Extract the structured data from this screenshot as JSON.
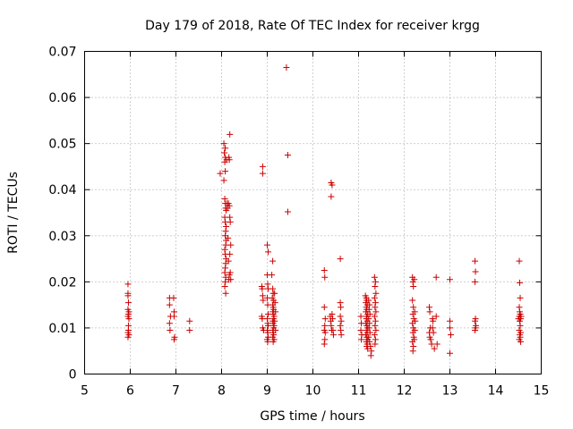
{
  "chart_data": {
    "type": "scatter",
    "title": "Day 179 of 2018, Rate Of TEC Index for receiver krgg",
    "xlabel": "GPS time / hours",
    "ylabel": "ROTI / TECUs",
    "xlim": [
      5,
      15
    ],
    "ylim": [
      0,
      0.07
    ],
    "xticks": [
      "5",
      "6",
      "7",
      "8",
      "9",
      "10",
      "11",
      "12",
      "13",
      "14",
      "15"
    ],
    "yticks": [
      "0",
      "0.01",
      "0.02",
      "0.03",
      "0.04",
      "0.05",
      "0.06",
      "0.07"
    ],
    "grid": true,
    "marker": "+",
    "color": "#cc0000",
    "series": [
      {
        "name": "ROTI",
        "points": [
          [
            5.95,
            0.0195
          ],
          [
            5.95,
            0.017
          ],
          [
            5.96,
            0.0155
          ],
          [
            5.95,
            0.014
          ],
          [
            5.97,
            0.0135
          ],
          [
            5.96,
            0.013
          ],
          [
            5.95,
            0.0125
          ],
          [
            5.97,
            0.012
          ],
          [
            5.96,
            0.0095
          ],
          [
            5.95,
            0.009
          ],
          [
            5.95,
            0.008
          ],
          [
            5.97,
            0.0085
          ],
          [
            5.96,
            0.0105
          ],
          [
            5.95,
            0.0175
          ],
          [
            6.86,
            0.0165
          ],
          [
            6.86,
            0.015
          ],
          [
            6.88,
            0.0125
          ],
          [
            6.86,
            0.011
          ],
          [
            6.87,
            0.0095
          ],
          [
            6.95,
            0.0165
          ],
          [
            6.96,
            0.0135
          ],
          [
            6.96,
            0.0125
          ],
          [
            6.97,
            0.008
          ],
          [
            6.96,
            0.0075
          ],
          [
            7.3,
            0.0115
          ],
          [
            7.3,
            0.0095
          ],
          [
            7.97,
            0.0435
          ],
          [
            8.05,
            0.05
          ],
          [
            8.08,
            0.049
          ],
          [
            8.06,
            0.048
          ],
          [
            8.08,
            0.047
          ],
          [
            8.07,
            0.046
          ],
          [
            8.08,
            0.044
          ],
          [
            8.05,
            0.042
          ],
          [
            8.07,
            0.038
          ],
          [
            8.08,
            0.037
          ],
          [
            8.09,
            0.036
          ],
          [
            8.1,
            0.0355
          ],
          [
            8.07,
            0.034
          ],
          [
            8.08,
            0.033
          ],
          [
            8.1,
            0.032
          ],
          [
            8.09,
            0.031
          ],
          [
            8.08,
            0.03
          ],
          [
            8.1,
            0.029
          ],
          [
            8.09,
            0.028
          ],
          [
            8.07,
            0.027
          ],
          [
            8.08,
            0.026
          ],
          [
            8.1,
            0.025
          ],
          [
            8.09,
            0.024
          ],
          [
            8.08,
            0.023
          ],
          [
            8.07,
            0.022
          ],
          [
            8.09,
            0.021
          ],
          [
            8.08,
            0.02
          ],
          [
            8.07,
            0.019
          ],
          [
            8.09,
            0.0175
          ],
          [
            8.11,
            0.0465
          ],
          [
            8.12,
            0.037
          ],
          [
            8.13,
            0.036
          ],
          [
            8.14,
            0.0295
          ],
          [
            8.15,
            0.0245
          ],
          [
            8.16,
            0.0205
          ],
          [
            8.18,
            0.052
          ],
          [
            8.16,
            0.047
          ],
          [
            8.17,
            0.0465
          ],
          [
            8.15,
            0.037
          ],
          [
            8.17,
            0.0365
          ],
          [
            8.18,
            0.034
          ],
          [
            8.19,
            0.033
          ],
          [
            8.2,
            0.028
          ],
          [
            8.18,
            0.026
          ],
          [
            8.19,
            0.022
          ],
          [
            8.17,
            0.0215
          ],
          [
            8.2,
            0.0205
          ],
          [
            8.9,
            0.045
          ],
          [
            8.9,
            0.0435
          ],
          [
            8.88,
            0.019
          ],
          [
            8.89,
            0.0185
          ],
          [
            8.9,
            0.017
          ],
          [
            8.91,
            0.016
          ],
          [
            8.88,
            0.0125
          ],
          [
            8.89,
            0.012
          ],
          [
            8.9,
            0.01
          ],
          [
            8.92,
            0.0095
          ],
          [
            9.0,
            0.028
          ],
          [
            9.02,
            0.0265
          ],
          [
            9.0,
            0.0215
          ],
          [
            9.01,
            0.0195
          ],
          [
            9.02,
            0.0185
          ],
          [
            9.0,
            0.0165
          ],
          [
            9.01,
            0.015
          ],
          [
            9.02,
            0.013
          ],
          [
            9.0,
            0.012
          ],
          [
            9.01,
            0.011
          ],
          [
            9.02,
            0.0105
          ],
          [
            9.0,
            0.0095
          ],
          [
            9.01,
            0.009
          ],
          [
            9.02,
            0.008
          ],
          [
            9.0,
            0.0075
          ],
          [
            9.01,
            0.007
          ],
          [
            9.12,
            0.0245
          ],
          [
            9.1,
            0.0215
          ],
          [
            9.12,
            0.0185
          ],
          [
            9.13,
            0.0175
          ],
          [
            9.11,
            0.0165
          ],
          [
            9.14,
            0.016
          ],
          [
            9.12,
            0.015
          ],
          [
            9.13,
            0.0145
          ],
          [
            9.14,
            0.014
          ],
          [
            9.12,
            0.0135
          ],
          [
            9.13,
            0.013
          ],
          [
            9.15,
            0.0125
          ],
          [
            9.14,
            0.012
          ],
          [
            9.12,
            0.0115
          ],
          [
            9.13,
            0.011
          ],
          [
            9.15,
            0.0105
          ],
          [
            9.14,
            0.01
          ],
          [
            9.12,
            0.0095
          ],
          [
            9.13,
            0.009
          ],
          [
            9.14,
            0.0085
          ],
          [
            9.12,
            0.008
          ],
          [
            9.15,
            0.0075
          ],
          [
            9.13,
            0.007
          ],
          [
            9.16,
            0.0175
          ],
          [
            9.17,
            0.0155
          ],
          [
            9.18,
            0.0135
          ],
          [
            9.16,
            0.0115
          ],
          [
            9.18,
            0.0095
          ],
          [
            9.42,
            0.0665
          ],
          [
            9.45,
            0.0475
          ],
          [
            9.45,
            0.0352
          ],
          [
            10.25,
            0.0225
          ],
          [
            10.26,
            0.021
          ],
          [
            10.25,
            0.0145
          ],
          [
            10.27,
            0.012
          ],
          [
            10.26,
            0.0105
          ],
          [
            10.25,
            0.0095
          ],
          [
            10.27,
            0.009
          ],
          [
            10.26,
            0.0075
          ],
          [
            10.25,
            0.0065
          ],
          [
            10.4,
            0.0415
          ],
          [
            10.42,
            0.041
          ],
          [
            10.4,
            0.0385
          ],
          [
            10.38,
            0.0125
          ],
          [
            10.39,
            0.0115
          ],
          [
            10.4,
            0.0105
          ],
          [
            10.41,
            0.0095
          ],
          [
            10.42,
            0.013
          ],
          [
            10.43,
            0.012
          ],
          [
            10.44,
            0.0095
          ],
          [
            10.45,
            0.0085
          ],
          [
            10.6,
            0.025
          ],
          [
            10.6,
            0.0155
          ],
          [
            10.61,
            0.0145
          ],
          [
            10.6,
            0.0125
          ],
          [
            10.62,
            0.0115
          ],
          [
            10.6,
            0.0105
          ],
          [
            10.61,
            0.0095
          ],
          [
            10.62,
            0.0085
          ],
          [
            11.05,
            0.0125
          ],
          [
            11.06,
            0.011
          ],
          [
            11.05,
            0.0095
          ],
          [
            11.07,
            0.0085
          ],
          [
            11.06,
            0.0075
          ],
          [
            11.15,
            0.017
          ],
          [
            11.17,
            0.0165
          ],
          [
            11.18,
            0.016
          ],
          [
            11.16,
            0.0155
          ],
          [
            11.19,
            0.015
          ],
          [
            11.17,
            0.0145
          ],
          [
            11.18,
            0.014
          ],
          [
            11.16,
            0.0135
          ],
          [
            11.2,
            0.013
          ],
          [
            11.18,
            0.0125
          ],
          [
            11.17,
            0.012
          ],
          [
            11.19,
            0.0115
          ],
          [
            11.16,
            0.011
          ],
          [
            11.18,
            0.0105
          ],
          [
            11.2,
            0.01
          ],
          [
            11.17,
            0.0095
          ],
          [
            11.19,
            0.009
          ],
          [
            11.16,
            0.0085
          ],
          [
            11.18,
            0.008
          ],
          [
            11.2,
            0.0075
          ],
          [
            11.17,
            0.007
          ],
          [
            11.19,
            0.0065
          ],
          [
            11.18,
            0.006
          ],
          [
            11.2,
            0.0055
          ],
          [
            11.22,
            0.016
          ],
          [
            11.24,
            0.015
          ],
          [
            11.23,
            0.014
          ],
          [
            11.25,
            0.013
          ],
          [
            11.22,
            0.012
          ],
          [
            11.24,
            0.011
          ],
          [
            11.23,
            0.01
          ],
          [
            11.25,
            0.009
          ],
          [
            11.22,
            0.008
          ],
          [
            11.24,
            0.007
          ],
          [
            11.26,
            0.006
          ],
          [
            11.28,
            0.005
          ],
          [
            11.27,
            0.004
          ],
          [
            11.35,
            0.021
          ],
          [
            11.37,
            0.02
          ],
          [
            11.36,
            0.019
          ],
          [
            11.38,
            0.0175
          ],
          [
            11.35,
            0.0165
          ],
          [
            11.37,
            0.0155
          ],
          [
            11.36,
            0.0145
          ],
          [
            11.38,
            0.0135
          ],
          [
            11.35,
            0.0125
          ],
          [
            11.37,
            0.0115
          ],
          [
            11.36,
            0.0105
          ],
          [
            11.38,
            0.0095
          ],
          [
            11.35,
            0.0085
          ],
          [
            11.37,
            0.0075
          ],
          [
            11.36,
            0.0065
          ],
          [
            12.18,
            0.021
          ],
          [
            12.19,
            0.02
          ],
          [
            12.2,
            0.019
          ],
          [
            12.18,
            0.016
          ],
          [
            12.2,
            0.0145
          ],
          [
            12.19,
            0.013
          ],
          [
            12.21,
            0.012
          ],
          [
            12.18,
            0.011
          ],
          [
            12.2,
            0.01
          ],
          [
            12.19,
            0.009
          ],
          [
            12.21,
            0.008
          ],
          [
            12.18,
            0.007
          ],
          [
            12.2,
            0.006
          ],
          [
            12.19,
            0.005
          ],
          [
            12.22,
            0.0205
          ],
          [
            12.23,
            0.0135
          ],
          [
            12.24,
            0.0115
          ],
          [
            12.23,
            0.0095
          ],
          [
            12.22,
            0.0075
          ],
          [
            12.55,
            0.0145
          ],
          [
            12.56,
            0.0135
          ],
          [
            12.57,
            0.01
          ],
          [
            12.55,
            0.009
          ],
          [
            12.56,
            0.008
          ],
          [
            12.58,
            0.0075
          ],
          [
            12.6,
            0.0065
          ],
          [
            12.62,
            0.012
          ],
          [
            12.63,
            0.0115
          ],
          [
            12.62,
            0.01
          ],
          [
            12.64,
            0.009
          ],
          [
            12.66,
            0.0055
          ],
          [
            12.7,
            0.021
          ],
          [
            12.7,
            0.0125
          ],
          [
            12.72,
            0.0065
          ],
          [
            13.0,
            0.0205
          ],
          [
            13.0,
            0.0115
          ],
          [
            13.0,
            0.01
          ],
          [
            13.02,
            0.0085
          ],
          [
            13.0,
            0.0045
          ],
          [
            13.55,
            0.0245
          ],
          [
            13.56,
            0.0222
          ],
          [
            13.55,
            0.02
          ],
          [
            13.56,
            0.012
          ],
          [
            13.55,
            0.0115
          ],
          [
            13.57,
            0.0105
          ],
          [
            13.56,
            0.01
          ],
          [
            13.55,
            0.0095
          ],
          [
            14.52,
            0.0245
          ],
          [
            14.53,
            0.0198
          ],
          [
            14.54,
            0.0165
          ],
          [
            14.52,
            0.0145
          ],
          [
            14.53,
            0.0135
          ],
          [
            14.54,
            0.013
          ],
          [
            14.52,
            0.0125
          ],
          [
            14.55,
            0.012
          ],
          [
            14.53,
            0.0115
          ],
          [
            14.54,
            0.0105
          ],
          [
            14.52,
            0.0095
          ],
          [
            14.55,
            0.009
          ],
          [
            14.53,
            0.0085
          ],
          [
            14.54,
            0.008
          ],
          [
            14.52,
            0.0075
          ],
          [
            14.55,
            0.007
          ],
          [
            14.5,
            0.012
          ],
          [
            14.56,
            0.0125
          ]
        ]
      }
    ]
  }
}
